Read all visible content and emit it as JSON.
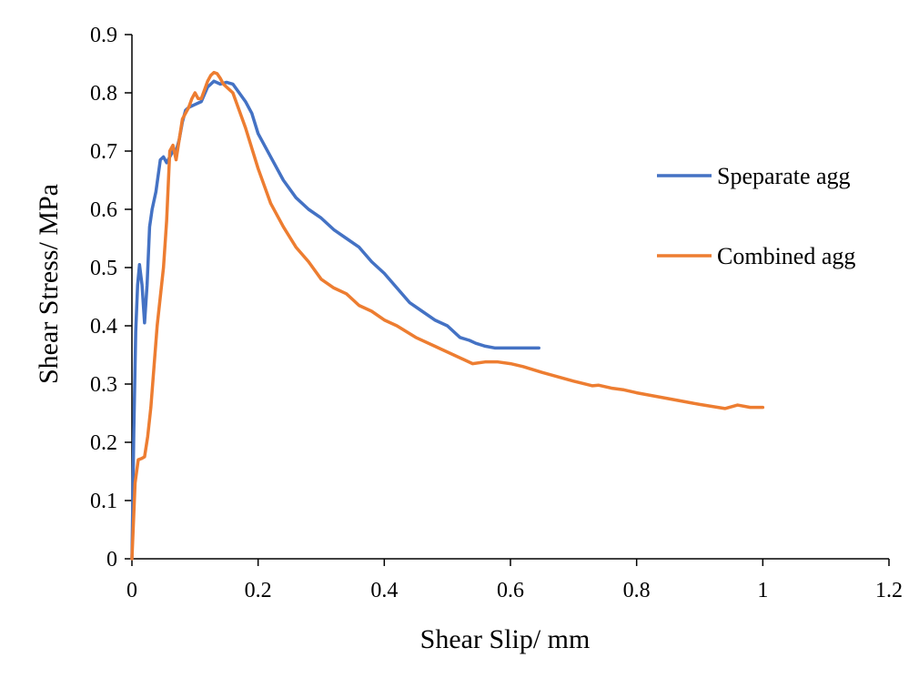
{
  "chart_data": {
    "type": "line",
    "title": "",
    "xlabel": "Shear Slip/ mm",
    "ylabel": "Shear Stress/ MPa",
    "xlim": [
      0,
      1.2
    ],
    "ylim": [
      0,
      0.9
    ],
    "x_ticks": [
      0,
      0.2,
      0.4,
      0.6,
      0.8,
      1,
      1.2
    ],
    "x_tick_labels": [
      "0",
      "0.2",
      "0.4",
      "0.6",
      "0.8",
      "1",
      "1.2"
    ],
    "y_ticks": [
      0,
      0.1,
      0.2,
      0.3,
      0.4,
      0.5,
      0.6,
      0.7,
      0.8,
      0.9
    ],
    "y_tick_labels": [
      "0",
      "0.1",
      "0.2",
      "0.3",
      "0.4",
      "0.5",
      "0.6",
      "0.7",
      "0.8",
      "0.9"
    ],
    "grid": false,
    "legend_position": "right",
    "series": [
      {
        "name": "Speparate agg",
        "color": "#4472C4",
        "x": [
          0,
          0.003,
          0.006,
          0.009,
          0.012,
          0.016,
          0.02,
          0.024,
          0.028,
          0.032,
          0.038,
          0.045,
          0.05,
          0.055,
          0.06,
          0.065,
          0.07,
          0.075,
          0.08,
          0.085,
          0.09,
          0.1,
          0.11,
          0.12,
          0.13,
          0.14,
          0.15,
          0.16,
          0.17,
          0.18,
          0.19,
          0.2,
          0.22,
          0.24,
          0.26,
          0.28,
          0.3,
          0.32,
          0.34,
          0.36,
          0.38,
          0.4,
          0.42,
          0.44,
          0.46,
          0.48,
          0.5,
          0.52,
          0.535,
          0.545,
          0.56,
          0.575,
          0.6,
          0.62,
          0.645
        ],
        "y": [
          0,
          0.22,
          0.39,
          0.47,
          0.505,
          0.47,
          0.405,
          0.47,
          0.57,
          0.6,
          0.63,
          0.685,
          0.69,
          0.68,
          0.69,
          0.7,
          0.7,
          0.72,
          0.75,
          0.77,
          0.775,
          0.78,
          0.785,
          0.81,
          0.82,
          0.815,
          0.818,
          0.815,
          0.8,
          0.785,
          0.765,
          0.73,
          0.69,
          0.65,
          0.62,
          0.6,
          0.585,
          0.565,
          0.55,
          0.535,
          0.51,
          0.49,
          0.465,
          0.44,
          0.425,
          0.41,
          0.4,
          0.38,
          0.375,
          0.37,
          0.365,
          0.362,
          0.362,
          0.362,
          0.362
        ]
      },
      {
        "name": "Combined agg",
        "color": "#ED7D31",
        "x": [
          0,
          0.005,
          0.01,
          0.015,
          0.02,
          0.025,
          0.03,
          0.035,
          0.04,
          0.045,
          0.05,
          0.055,
          0.06,
          0.065,
          0.07,
          0.075,
          0.08,
          0.085,
          0.09,
          0.095,
          0.1,
          0.105,
          0.11,
          0.115,
          0.12,
          0.125,
          0.13,
          0.135,
          0.14,
          0.145,
          0.15,
          0.155,
          0.16,
          0.17,
          0.18,
          0.2,
          0.22,
          0.24,
          0.26,
          0.28,
          0.3,
          0.32,
          0.34,
          0.36,
          0.38,
          0.4,
          0.42,
          0.45,
          0.48,
          0.51,
          0.54,
          0.56,
          0.58,
          0.6,
          0.62,
          0.65,
          0.7,
          0.73,
          0.74,
          0.76,
          0.78,
          0.8,
          0.85,
          0.9,
          0.94,
          0.96,
          0.98,
          1.0
        ],
        "y": [
          0,
          0.13,
          0.17,
          0.172,
          0.175,
          0.21,
          0.26,
          0.33,
          0.4,
          0.45,
          0.5,
          0.58,
          0.7,
          0.71,
          0.685,
          0.72,
          0.755,
          0.765,
          0.775,
          0.79,
          0.8,
          0.79,
          0.79,
          0.805,
          0.82,
          0.83,
          0.835,
          0.833,
          0.825,
          0.815,
          0.81,
          0.805,
          0.8,
          0.77,
          0.74,
          0.67,
          0.61,
          0.57,
          0.535,
          0.51,
          0.48,
          0.465,
          0.455,
          0.435,
          0.425,
          0.41,
          0.4,
          0.38,
          0.365,
          0.35,
          0.335,
          0.338,
          0.338,
          0.335,
          0.33,
          0.32,
          0.305,
          0.297,
          0.298,
          0.293,
          0.29,
          0.285,
          0.275,
          0.265,
          0.258,
          0.264,
          0.26,
          0.26
        ]
      }
    ]
  }
}
